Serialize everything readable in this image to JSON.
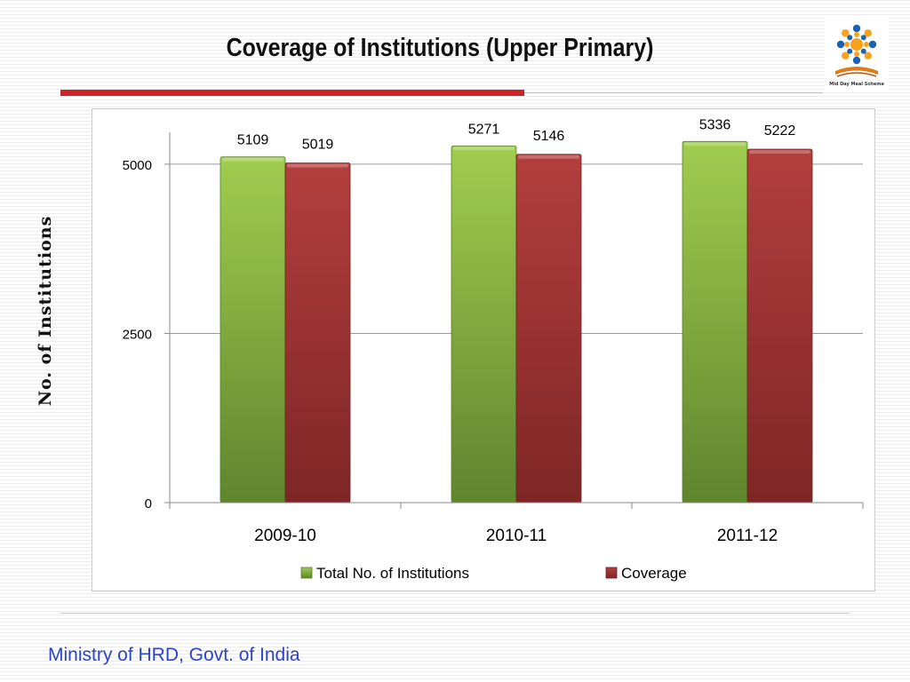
{
  "slide": {
    "title": "Coverage of Institutions (Upper Primary)",
    "footer": "Ministry of HRD, Govt. of India",
    "logo_caption": "Mid Day Meal Scheme",
    "title_bar_color": "#cc2229",
    "footer_color": "#2a44c4"
  },
  "chart_data": {
    "type": "bar",
    "title": "",
    "xlabel": "",
    "ylabel": "No. of Institutions",
    "categories": [
      "2009-10",
      "2010-11",
      "2011-12"
    ],
    "series": [
      {
        "name": "Total No. of Institutions",
        "values": [
          5109,
          5271,
          5336
        ],
        "color": "#7fab3a"
      },
      {
        "name": "Coverage",
        "values": [
          5019,
          5146,
          5222
        ],
        "color": "#9b3434"
      }
    ],
    "ylim": [
      0,
      5550
    ],
    "yticks": [
      0,
      2500,
      5000
    ],
    "grid": true,
    "legend_position": "bottom",
    "data_labels": true
  }
}
